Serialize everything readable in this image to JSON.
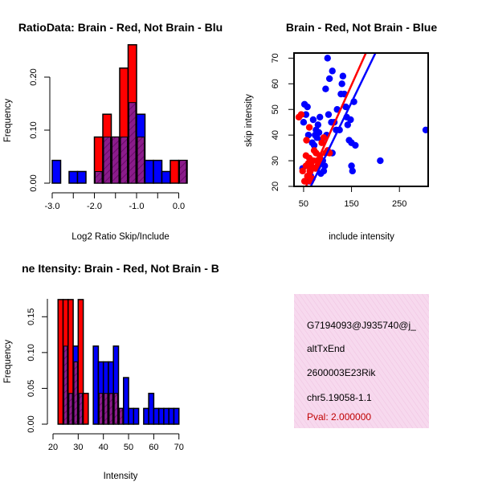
{
  "chart_data": [
    {
      "type": "histogram",
      "title": "RatioData: Brain - Red, Not Brain - Blu",
      "xlabel": "Log2 Ratio Skip/Include",
      "ylabel": "Frequency",
      "xlim": [
        -3.0,
        0.2
      ],
      "ylim": [
        0,
        0.25
      ],
      "xticks": [
        -3.0,
        -2.0,
        -1.0,
        0.0
      ],
      "xtick_labels": [
        "-3.0",
        "-2.0",
        "-1.0",
        "0.0"
      ],
      "yticks": [
        0.0,
        0.1,
        0.2
      ],
      "ytick_labels": [
        "0.00",
        "0.10",
        "0.20"
      ],
      "bin_edges": [
        -3.0,
        -2.8,
        -2.6,
        -2.4,
        -2.2,
        -2.0,
        -1.8,
        -1.6,
        -1.4,
        -1.2,
        -1.0,
        -0.8,
        -0.6,
        -0.4,
        -0.2,
        0.0,
        0.2
      ],
      "series": [
        {
          "name": "Brain",
          "color": "#ff0000",
          "values": [
            0,
            0,
            0,
            0,
            0,
            0.087,
            0.13,
            0.087,
            0.217,
            0.261,
            0.087,
            0,
            0,
            0,
            0.043,
            0.043
          ]
        },
        {
          "name": "Not Brain",
          "color": "#0000ff",
          "values": [
            0.043,
            0,
            0.022,
            0.022,
            0,
            0.022,
            0.087,
            0.087,
            0.087,
            0.152,
            0.13,
            0.043,
            0.043,
            0.022,
            0,
            0.043
          ]
        }
      ],
      "overlap_color": "#8b1c8b"
    },
    {
      "type": "scatter",
      "title": "Brain - Red, Not Brain - Blue",
      "xlabel": "include intensity",
      "ylabel": "skip intensity",
      "xlim": [
        30,
        310
      ],
      "ylim": [
        20,
        72
      ],
      "xticks": [
        50,
        150,
        250
      ],
      "yticks": [
        20,
        30,
        40,
        50,
        60,
        70
      ],
      "series": [
        {
          "name": "Brain",
          "color": "#ff0000",
          "points": [
            [
              40,
              47
            ],
            [
              45,
              48
            ],
            [
              48,
              26
            ],
            [
              52,
              22
            ],
            [
              55,
              28
            ],
            [
              55,
              32
            ],
            [
              58,
              24
            ],
            [
              60,
              29
            ],
            [
              62,
              31
            ],
            [
              63,
              26
            ],
            [
              65,
              22
            ],
            [
              66,
              28
            ],
            [
              68,
              23
            ],
            [
              70,
              30
            ],
            [
              72,
              34
            ],
            [
              75,
              27
            ],
            [
              76,
              33
            ],
            [
              78,
              30
            ],
            [
              80,
              28
            ],
            [
              84,
              32
            ],
            [
              86,
              30
            ],
            [
              88,
              37
            ],
            [
              92,
              39
            ],
            [
              96,
              33
            ],
            [
              100,
              34
            ],
            [
              104,
              33
            ],
            [
              62,
              43
            ],
            [
              56,
              38
            ]
          ],
          "fit": [
            [
              55,
              20
            ],
            [
              180,
              72
            ]
          ]
        },
        {
          "name": "Not Brain",
          "color": "#0000ff",
          "points": [
            [
              48,
              27
            ],
            [
              50,
              45
            ],
            [
              52,
              52
            ],
            [
              55,
              48
            ],
            [
              58,
              51
            ],
            [
              60,
              40
            ],
            [
              62,
              22
            ],
            [
              65,
              24
            ],
            [
              68,
              37
            ],
            [
              70,
              46
            ],
            [
              72,
              36
            ],
            [
              74,
              40
            ],
            [
              76,
              42
            ],
            [
              78,
              39
            ],
            [
              80,
              44
            ],
            [
              82,
              41
            ],
            [
              84,
              47
            ],
            [
              86,
              25
            ],
            [
              88,
              38
            ],
            [
              90,
              30
            ],
            [
              92,
              26
            ],
            [
              94,
              28
            ],
            [
              96,
              58
            ],
            [
              100,
              70
            ],
            [
              102,
              48
            ],
            [
              104,
              62
            ],
            [
              108,
              45
            ],
            [
              110,
              65
            ],
            [
              114,
              45
            ],
            [
              118,
              42
            ],
            [
              120,
              50
            ],
            [
              125,
              42
            ],
            [
              128,
              56
            ],
            [
              130,
              60
            ],
            [
              132,
              63
            ],
            [
              135,
              56
            ],
            [
              138,
              51
            ],
            [
              140,
              47
            ],
            [
              142,
              44
            ],
            [
              145,
              38
            ],
            [
              148,
              46
            ],
            [
              150,
              37
            ],
            [
              150,
              28
            ],
            [
              152,
              26
            ],
            [
              155,
              53
            ],
            [
              158,
              36
            ],
            [
              210,
              30
            ],
            [
              305,
              42
            ],
            [
              98,
              40
            ],
            [
              110,
              33
            ]
          ],
          "fit": [
            [
              65,
              20
            ],
            [
              200,
              72
            ]
          ]
        }
      ]
    },
    {
      "type": "histogram",
      "title": "ne Itensity: Brain - Red, Not Brain - B",
      "xlabel": "Intensity",
      "ylabel": "Frequency",
      "xlim": [
        20,
        72
      ],
      "ylim": [
        0,
        0.175
      ],
      "xticks": [
        20,
        30,
        40,
        50,
        60,
        70
      ],
      "yticks": [
        0.0,
        0.05,
        0.1,
        0.15
      ],
      "ytick_labels": [
        "0.00",
        "0.05",
        "0.10",
        "0.15"
      ],
      "bin_edges": [
        22,
        24,
        26,
        28,
        30,
        32,
        34,
        36,
        38,
        40,
        42,
        44,
        46,
        48,
        50,
        52,
        54,
        56,
        58,
        60,
        62,
        64,
        66,
        68,
        70
      ],
      "series": [
        {
          "name": "Brain",
          "color": "#ff0000",
          "values": [
            0.174,
            0.174,
            0.174,
            0.087,
            0.174,
            0.043,
            0,
            0,
            0.043,
            0.043,
            0.043,
            0.043,
            0.022,
            0,
            0,
            0,
            0,
            0,
            0,
            0,
            0,
            0,
            0,
            0
          ]
        },
        {
          "name": "Not Brain",
          "color": "#0000ff",
          "values": [
            0,
            0.109,
            0.043,
            0.109,
            0.043,
            0,
            0,
            0.109,
            0.087,
            0.087,
            0.087,
            0.109,
            0.022,
            0.065,
            0.022,
            0.022,
            0,
            0.022,
            0.043,
            0.022,
            0.022,
            0.022,
            0.022,
            0.022
          ]
        }
      ],
      "overlap_color": "#8b1c8b"
    }
  ],
  "info_box": {
    "lines": [
      "G7194093@J935740@j_",
      "altTxEnd",
      "2600003E23Rik",
      "chr5.19058-1.1"
    ],
    "pval": "Pval: 2.000000"
  }
}
